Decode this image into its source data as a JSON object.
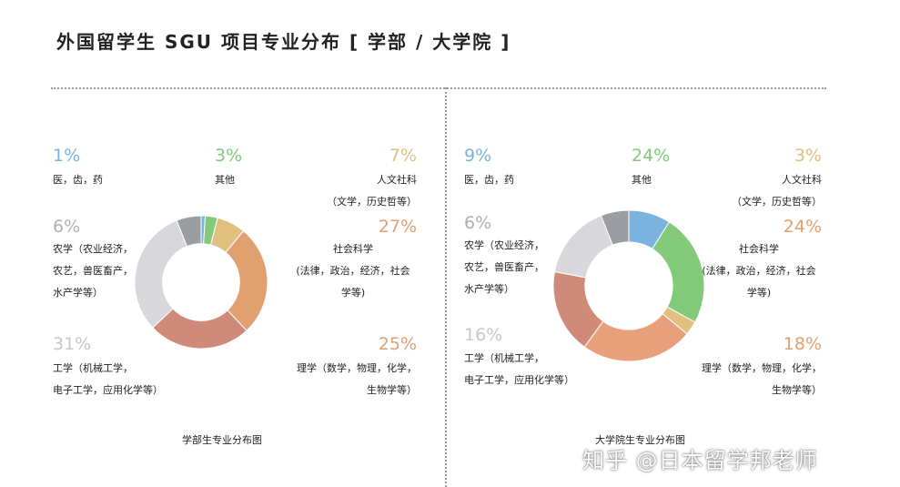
{
  "title": "外国留学生 SGU 项目专业分布 [ 学部 / 大学院 ]",
  "colors": {
    "medicine": "#7ab3e0",
    "other": "#82c97a",
    "humanities": "#e0c080",
    "social": "#e0a070",
    "science": "#e8a07a",
    "engineering": "#d08a7a",
    "agriculture": "#d8d8dc",
    "gray": "#9a9ea2"
  },
  "chart_data": [
    {
      "type": "pie",
      "caption": "学部生专业分布图",
      "slices": [
        {
          "key": "medicine",
          "pct_label": "1%",
          "value": 1,
          "color": "#7ab3e0",
          "lines": [
            "医，齿，药"
          ]
        },
        {
          "key": "other",
          "pct_label": "3%",
          "value": 3,
          "color": "#82c97a",
          "lines": [
            "其他"
          ]
        },
        {
          "key": "humanities",
          "pct_label": "7%",
          "value": 7,
          "color": "#e0c080",
          "lines": [
            "人文社科",
            "（文学，历史哲等）"
          ]
        },
        {
          "key": "social",
          "pct_label": "27%",
          "value": 27,
          "color": "#e0a070",
          "lines": [
            "社会科学",
            "(法律，政治，经济，社会",
            "学等)"
          ]
        },
        {
          "key": "science",
          "pct_label": "25%",
          "value": 25,
          "color": "#d08a7a",
          "lines": [
            "理学（数学，物理，化学，",
            "生物学等）"
          ]
        },
        {
          "key": "engineering",
          "pct_label": "31%",
          "value": 31,
          "color": "#d8d8dc",
          "lines": [
            "工学（机械工学，",
            "电子工学，应用化学等）"
          ]
        },
        {
          "key": "agriculture",
          "pct_label": "6%",
          "value": 6,
          "color": "#9a9ea2",
          "lines": [
            "农学（农业经济，",
            "农艺，兽医畜产，",
            "水产学等）"
          ]
        }
      ]
    },
    {
      "type": "pie",
      "caption": "大学院生专业分布图",
      "slices": [
        {
          "key": "medicine",
          "pct_label": "9%",
          "value": 9,
          "color": "#7ab3e0",
          "lines": [
            "医，齿，药"
          ]
        },
        {
          "key": "other",
          "pct_label": "24%",
          "value": 24,
          "color": "#82c97a",
          "lines": [
            "其他"
          ]
        },
        {
          "key": "humanities",
          "pct_label": "3%",
          "value": 3,
          "color": "#e0c080",
          "lines": [
            "人文社科",
            "（文学，历史哲等）"
          ]
        },
        {
          "key": "social",
          "pct_label": "24%",
          "value": 24,
          "color": "#e8a07a",
          "lines": [
            "社会科学",
            "(法律，政治，经济，社会",
            "学等)"
          ]
        },
        {
          "key": "science",
          "pct_label": "18%",
          "value": 18,
          "color": "#d08a7a",
          "lines": [
            "理学（数学，物理，化学，",
            "生物学等）"
          ]
        },
        {
          "key": "engineering",
          "pct_label": "16%",
          "value": 16,
          "color": "#d8d8dc",
          "lines": [
            "工学（机械工学，",
            "电子工学，应用化学等）"
          ]
        },
        {
          "key": "agriculture",
          "pct_label": "6%",
          "value": 6,
          "color": "#9a9ea2",
          "lines": [
            "农学（农业经济，",
            "农艺，兽医畜产，",
            "水产学等）"
          ]
        }
      ]
    }
  ],
  "pct_colors": {
    "medicine": "#7ab3e0",
    "other": "#82c97a",
    "humanities": "#e0c080",
    "social": "#e0a070",
    "science": "#e0a070",
    "engineering": "#c8c8cc",
    "agriculture": "#b0b0b4"
  },
  "watermark": "知乎 @日本留学邦老师"
}
